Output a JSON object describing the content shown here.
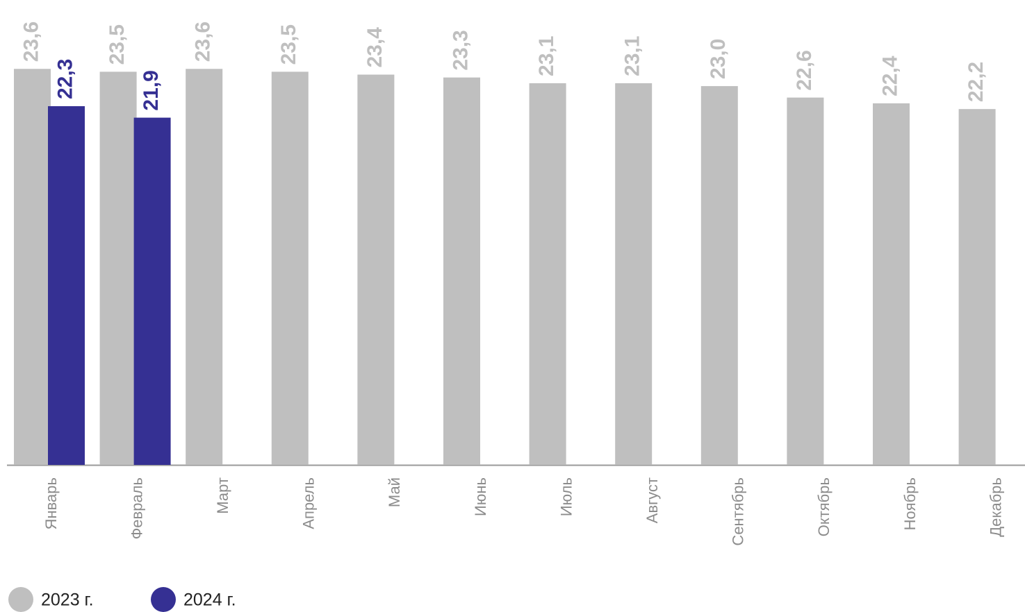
{
  "chart_data": {
    "type": "bar",
    "categories": [
      "Январь",
      "Февраль",
      "Март",
      "Апрель",
      "Май",
      "Июнь",
      "Июль",
      "Август",
      "Сентябрь",
      "Октябрь",
      "Ноябрь",
      "Декабрь"
    ],
    "series": [
      {
        "name": "2023 г.",
        "color": "#bfbfbf",
        "values": [
          23.6,
          23.5,
          23.6,
          23.5,
          23.4,
          23.3,
          23.1,
          23.1,
          23.0,
          22.6,
          22.4,
          22.2
        ],
        "value_labels": [
          "23,6",
          "23,5",
          "23,6",
          "23,5",
          "23,4",
          "23,3",
          "23,1",
          "23,1",
          "23,0",
          "22,6",
          "22,4",
          "22,2"
        ]
      },
      {
        "name": "2024 г.",
        "color": "#353093",
        "values": [
          22.3,
          21.9,
          null,
          null,
          null,
          null,
          null,
          null,
          null,
          null,
          null,
          null
        ],
        "value_labels": [
          "22,3",
          "21,9",
          null,
          null,
          null,
          null,
          null,
          null,
          null,
          null,
          null,
          null
        ]
      }
    ],
    "ylim": [
      9.8,
      26
    ],
    "legend": "bottom-left"
  }
}
